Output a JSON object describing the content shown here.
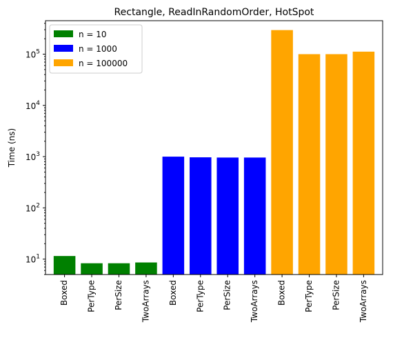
{
  "chart_data": {
    "type": "bar",
    "title": "Rectangle, ReadInRandomOrder, HotSpot",
    "xlabel": "",
    "ylabel": "Time (ns)",
    "yscale": "log",
    "ylim": [
      5,
      450000
    ],
    "yticks": [
      {
        "value": 10,
        "base": "10",
        "exp": "1"
      },
      {
        "value": 100,
        "base": "10",
        "exp": "2"
      },
      {
        "value": 1000,
        "base": "10",
        "exp": "3"
      },
      {
        "value": 10000,
        "base": "10",
        "exp": "4"
      },
      {
        "value": 100000,
        "base": "10",
        "exp": "5"
      }
    ],
    "categories": [
      "Boxed",
      "PerType",
      "PerSize",
      "TwoArrays",
      "Boxed",
      "PerType",
      "PerSize",
      "TwoArrays",
      "Boxed",
      "PerType",
      "PerSize",
      "TwoArrays"
    ],
    "series": [
      {
        "name": "n = 10",
        "color": "#008000",
        "values": [
          11.5,
          8.3,
          8.3,
          8.6,
          null,
          null,
          null,
          null,
          null,
          null,
          null,
          null
        ]
      },
      {
        "name": "n = 1000",
        "color": "#0000ff",
        "values": [
          null,
          null,
          null,
          null,
          1000,
          970,
          960,
          960,
          null,
          null,
          null,
          null
        ]
      },
      {
        "name": "n = 100000",
        "color": "#ffa500",
        "values": [
          null,
          null,
          null,
          null,
          null,
          null,
          null,
          null,
          295000,
          100000,
          100000,
          112000
        ]
      }
    ],
    "legend": "top-left",
    "grid": false
  }
}
